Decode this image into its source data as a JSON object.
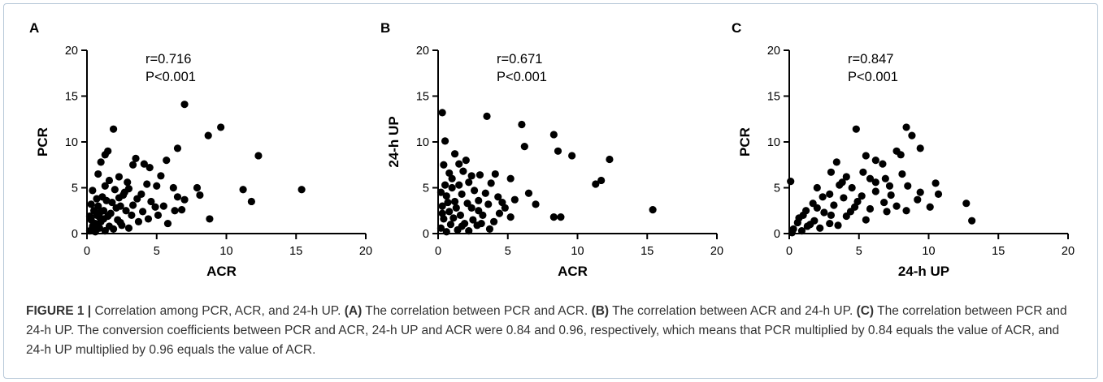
{
  "caption": {
    "prefix": "FIGURE 1 |",
    "intro": " Correlation among PCR, ACR, and 24-h UP. ",
    "a_tag": "(A)",
    "a_text": " The correlation between PCR and ACR. ",
    "b_tag": "(B)",
    "b_text": " The correlation between ACR and 24-h UP. ",
    "c_tag": "(C)",
    "c_text": " The correlation between PCR and 24-h UP. The conversion coefficients between PCR and ACR, 24-h UP and ACR were 0.84 and 0.96, respectively, which means that PCR multiplied by 0.84 equals the value of ACR, and 24-h UP multiplied by 0.96 equals the value of ACR."
  },
  "chart_data": [
    {
      "type": "scatter",
      "panel": "A",
      "xlabel": "ACR",
      "ylabel": "PCR",
      "xlim": [
        0,
        20
      ],
      "ylim": [
        0,
        20
      ],
      "xticks": [
        "0",
        "5",
        "10",
        "15",
        "20"
      ],
      "yticks": [
        "0",
        "5",
        "10",
        "15",
        "20"
      ],
      "annotation": [
        "r=0.716",
        "P<0.001"
      ],
      "points": [
        [
          7.0,
          14.1
        ],
        [
          9.6,
          11.6
        ],
        [
          1.9,
          11.4
        ],
        [
          6.5,
          9.3
        ],
        [
          1.5,
          9.0
        ],
        [
          1.3,
          8.6
        ],
        [
          12.3,
          8.5
        ],
        [
          3.5,
          8.2
        ],
        [
          1.0,
          7.8
        ],
        [
          4.5,
          7.2
        ],
        [
          5.7,
          8.0
        ],
        [
          3.3,
          7.5
        ],
        [
          4.1,
          7.6
        ],
        [
          8.7,
          10.7
        ],
        [
          0.8,
          6.5
        ],
        [
          2.3,
          6.2
        ],
        [
          5.3,
          6.3
        ],
        [
          2.9,
          5.6
        ],
        [
          4.3,
          5.4
        ],
        [
          1.3,
          5.2
        ],
        [
          5.0,
          5.2
        ],
        [
          6.2,
          5.0
        ],
        [
          7.9,
          5.0
        ],
        [
          2.0,
          4.8
        ],
        [
          3.0,
          4.9
        ],
        [
          11.2,
          4.8
        ],
        [
          15.4,
          4.8
        ],
        [
          8.1,
          4.2
        ],
        [
          6.5,
          4.0
        ],
        [
          0.4,
          4.7
        ],
        [
          2.6,
          4.2
        ],
        [
          3.6,
          3.8
        ],
        [
          4.6,
          3.5
        ],
        [
          7.0,
          3.7
        ],
        [
          11.8,
          3.5
        ],
        [
          5.5,
          3.0
        ],
        [
          6.8,
          2.6
        ],
        [
          0.3,
          3.2
        ],
        [
          2.4,
          3.0
        ],
        [
          1.8,
          3.4
        ],
        [
          4.0,
          2.4
        ],
        [
          6.3,
          2.5
        ],
        [
          1.2,
          2.5
        ],
        [
          5.1,
          2.0
        ],
        [
          3.2,
          2.0
        ],
        [
          4.4,
          1.6
        ],
        [
          8.8,
          1.6
        ],
        [
          5.8,
          1.1
        ],
        [
          1.5,
          1.9
        ],
        [
          2.2,
          1.5
        ],
        [
          3.7,
          1.3
        ],
        [
          0.3,
          1.5
        ],
        [
          0.7,
          2.0
        ],
        [
          1.0,
          1.3
        ],
        [
          0.4,
          0.8
        ],
        [
          0.9,
          0.6
        ],
        [
          1.6,
          0.8
        ],
        [
          2.5,
          0.9
        ],
        [
          0.2,
          0.3
        ],
        [
          0.6,
          0.2
        ],
        [
          1.3,
          0.3
        ],
        [
          3.0,
          0.6
        ],
        [
          0.8,
          3.0
        ],
        [
          1.1,
          4.0
        ],
        [
          0.5,
          2.5
        ],
        [
          1.7,
          2.2
        ],
        [
          2.8,
          2.5
        ],
        [
          0.9,
          1.8
        ],
        [
          2.1,
          2.8
        ],
        [
          1.4,
          3.6
        ],
        [
          0.6,
          1.1
        ],
        [
          2.4,
          1.2
        ],
        [
          3.3,
          3.1
        ],
        [
          4.9,
          2.9
        ],
        [
          0.2,
          1.9
        ],
        [
          1.9,
          0.5
        ],
        [
          2.7,
          4.5
        ],
        [
          0.5,
          0.5
        ],
        [
          1.2,
          1.6
        ],
        [
          3.9,
          4.3
        ],
        [
          2.3,
          3.9
        ],
        [
          1.6,
          5.8
        ],
        [
          1.0,
          2.4
        ],
        [
          0.7,
          3.8
        ]
      ]
    },
    {
      "type": "scatter",
      "panel": "B",
      "xlabel": "ACR",
      "ylabel": "24-h UP",
      "xlim": [
        0,
        20
      ],
      "ylim": [
        0,
        20
      ],
      "xticks": [
        "0",
        "5",
        "10",
        "15",
        "20"
      ],
      "yticks": [
        "0",
        "5",
        "10",
        "15",
        "20"
      ],
      "annotation": [
        "r=0.671",
        "P<0.001"
      ],
      "points": [
        [
          0.3,
          13.2
        ],
        [
          3.5,
          12.8
        ],
        [
          6.0,
          11.9
        ],
        [
          0.5,
          10.1
        ],
        [
          8.3,
          10.8
        ],
        [
          8.6,
          9.0
        ],
        [
          9.6,
          8.5
        ],
        [
          12.3,
          8.1
        ],
        [
          1.2,
          8.7
        ],
        [
          2.0,
          8.0
        ],
        [
          6.2,
          9.5
        ],
        [
          1.5,
          7.6
        ],
        [
          0.4,
          7.5
        ],
        [
          3.0,
          6.4
        ],
        [
          4.1,
          6.5
        ],
        [
          5.2,
          6.0
        ],
        [
          2.2,
          5.6
        ],
        [
          3.8,
          5.5
        ],
        [
          1.0,
          6.0
        ],
        [
          6.5,
          4.4
        ],
        [
          11.3,
          5.4
        ],
        [
          11.7,
          5.8
        ],
        [
          7.0,
          3.2
        ],
        [
          5.5,
          3.7
        ],
        [
          4.3,
          4.0
        ],
        [
          1.7,
          4.3
        ],
        [
          0.6,
          4.1
        ],
        [
          2.9,
          3.6
        ],
        [
          3.6,
          3.2
        ],
        [
          4.8,
          2.8
        ],
        [
          2.4,
          2.8
        ],
        [
          1.2,
          3.5
        ],
        [
          0.3,
          3.0
        ],
        [
          5.2,
          1.8
        ],
        [
          8.3,
          1.8
        ],
        [
          8.8,
          1.8
        ],
        [
          15.4,
          2.6
        ],
        [
          2.5,
          1.5
        ],
        [
          1.6,
          2.0
        ],
        [
          0.8,
          2.4
        ],
        [
          3.2,
          2.0
        ],
        [
          4.0,
          1.3
        ],
        [
          0.4,
          1.6
        ],
        [
          1.9,
          1.1
        ],
        [
          2.8,
          0.9
        ],
        [
          0.9,
          1.0
        ],
        [
          0.2,
          0.6
        ],
        [
          1.4,
          0.4
        ],
        [
          3.7,
          0.5
        ],
        [
          0.6,
          0.2
        ],
        [
          2.2,
          0.3
        ],
        [
          1.0,
          5.0
        ],
        [
          0.5,
          5.3
        ],
        [
          1.8,
          6.8
        ],
        [
          2.6,
          4.7
        ],
        [
          0.2,
          4.5
        ],
        [
          1.3,
          2.8
        ],
        [
          2.1,
          3.3
        ],
        [
          0.7,
          3.4
        ],
        [
          3.4,
          4.4
        ],
        [
          1.1,
          1.7
        ],
        [
          2.9,
          2.5
        ],
        [
          4.6,
          3.4
        ],
        [
          0.3,
          2.2
        ],
        [
          1.5,
          5.3
        ],
        [
          2.4,
          6.3
        ],
        [
          0.8,
          6.6
        ],
        [
          3.1,
          1.1
        ],
        [
          4.4,
          2.2
        ],
        [
          1.7,
          0.8
        ]
      ]
    },
    {
      "type": "scatter",
      "panel": "C",
      "xlabel": "24-h UP",
      "ylabel": "PCR",
      "xlim": [
        0,
        20
      ],
      "ylim": [
        0,
        20
      ],
      "xticks": [
        "0",
        "5",
        "10",
        "15",
        "20"
      ],
      "yticks": [
        "0",
        "5",
        "10",
        "15",
        "20"
      ],
      "annotation": [
        "r=0.847",
        "P<0.001"
      ],
      "points": [
        [
          4.8,
          11.4
        ],
        [
          8.4,
          11.6
        ],
        [
          8.8,
          10.7
        ],
        [
          9.4,
          9.3
        ],
        [
          7.7,
          9.0
        ],
        [
          6.2,
          8.0
        ],
        [
          5.5,
          8.5
        ],
        [
          3.4,
          7.8
        ],
        [
          6.7,
          7.6
        ],
        [
          8.0,
          8.6
        ],
        [
          0.1,
          5.7
        ],
        [
          3.0,
          6.7
        ],
        [
          4.1,
          6.2
        ],
        [
          5.8,
          6.0
        ],
        [
          6.9,
          6.0
        ],
        [
          10.5,
          5.5
        ],
        [
          10.7,
          4.3
        ],
        [
          2.0,
          5.0
        ],
        [
          3.6,
          5.3
        ],
        [
          4.5,
          5.0
        ],
        [
          7.2,
          5.2
        ],
        [
          8.5,
          5.2
        ],
        [
          2.9,
          4.3
        ],
        [
          3.9,
          3.9
        ],
        [
          5.2,
          4.1
        ],
        [
          6.2,
          4.6
        ],
        [
          7.3,
          4.2
        ],
        [
          9.4,
          4.5
        ],
        [
          12.7,
          3.3
        ],
        [
          13.1,
          1.4
        ],
        [
          10.1,
          2.9
        ],
        [
          8.4,
          2.5
        ],
        [
          7.0,
          2.4
        ],
        [
          5.8,
          2.7
        ],
        [
          4.7,
          2.9
        ],
        [
          3.2,
          3.1
        ],
        [
          1.7,
          3.3
        ],
        [
          2.5,
          2.3
        ],
        [
          4.1,
          1.9
        ],
        [
          5.5,
          1.5
        ],
        [
          1.0,
          2.0
        ],
        [
          1.8,
          1.4
        ],
        [
          2.9,
          1.1
        ],
        [
          0.6,
          1.2
        ],
        [
          1.3,
          0.8
        ],
        [
          0.3,
          0.5
        ],
        [
          0.9,
          0.3
        ],
        [
          2.2,
          0.6
        ],
        [
          3.5,
          0.9
        ],
        [
          0.2,
          0.1
        ],
        [
          6.8,
          3.4
        ],
        [
          9.2,
          3.7
        ],
        [
          3.0,
          2.0
        ],
        [
          4.9,
          3.5
        ],
        [
          2.0,
          2.8
        ],
        [
          1.2,
          2.5
        ],
        [
          0.7,
          1.7
        ],
        [
          6.2,
          5.6
        ],
        [
          8.1,
          6.5
        ],
        [
          5.3,
          6.7
        ],
        [
          3.8,
          5.6
        ],
        [
          2.4,
          4.0
        ],
        [
          1.5,
          1.0
        ],
        [
          4.4,
          2.4
        ],
        [
          7.7,
          3.0
        ]
      ]
    }
  ]
}
